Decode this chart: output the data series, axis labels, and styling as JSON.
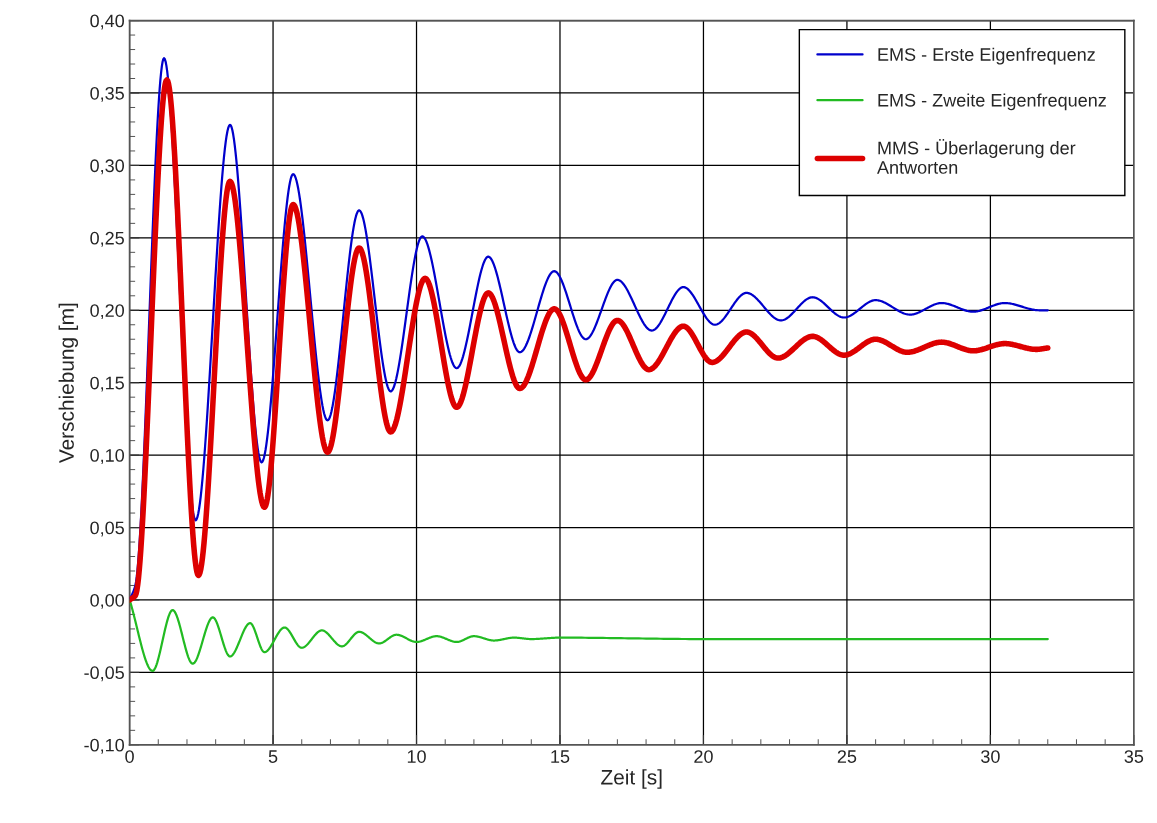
{
  "chart_data": {
    "type": "line",
    "xlabel": "Zeit [s]",
    "ylabel": "Verschiebung [m]",
    "xlim": [
      0,
      35
    ],
    "xticks": [
      0,
      5,
      10,
      15,
      20,
      25,
      30,
      35
    ],
    "ylim": [
      -0.1,
      0.4
    ],
    "yticks": [
      {
        "value": -0.1,
        "label": "-0,10"
      },
      {
        "value": -0.05,
        "label": "-0,05"
      },
      {
        "value": 0,
        "label": "0,00"
      },
      {
        "value": 0.05,
        "label": "0,05"
      },
      {
        "value": 0.1,
        "label": "0,10"
      },
      {
        "value": 0.15,
        "label": "0,15"
      },
      {
        "value": 0.2,
        "label": "0,20"
      },
      {
        "value": 0.25,
        "label": "0,25"
      },
      {
        "value": 0.3,
        "label": "0,30"
      },
      {
        "value": 0.35,
        "label": "0,35"
      },
      {
        "value": 0.4,
        "label": "0,40"
      }
    ],
    "grid": true,
    "legend": "top right",
    "marker": "none",
    "line_style": "solid",
    "series": [
      {
        "name": "EMS - Erste Eigenfrequenz",
        "color": "#0000cc",
        "x": [
          0,
          0.2,
          1.2,
          2.3,
          3.5,
          4.6,
          5.7,
          6.9,
          8.0,
          9.1,
          10.2,
          11.4,
          12.5,
          13.6,
          14.8,
          15.9,
          17.0,
          18.2,
          19.3,
          20.4,
          21.5,
          22.7,
          23.8,
          24.9,
          26.0,
          27.2,
          28.3,
          29.4,
          30.5,
          31.7,
          32.0
        ],
        "values": [
          0,
          0.01,
          0.374,
          0.055,
          0.328,
          0.095,
          0.294,
          0.124,
          0.269,
          0.144,
          0.251,
          0.16,
          0.237,
          0.171,
          0.227,
          0.18,
          0.221,
          0.186,
          0.216,
          0.19,
          0.212,
          0.193,
          0.209,
          0.195,
          0.207,
          0.197,
          0.205,
          0.199,
          0.205,
          0.2,
          0.2
        ]
      },
      {
        "name": "EMS - Zweite Eigenfrequenz",
        "color": "#22bb22",
        "x": [
          0,
          0.8,
          1.5,
          2.2,
          2.9,
          3.5,
          4.2,
          4.7,
          5.4,
          6.0,
          6.7,
          7.4,
          8.0,
          8.7,
          9.3,
          10.0,
          10.7,
          11.4,
          12.0,
          12.7,
          13.4,
          14.0,
          15.0,
          20.0,
          25.0,
          32.0
        ],
        "values": [
          0,
          -0.049,
          -0.007,
          -0.044,
          -0.012,
          -0.039,
          -0.016,
          -0.036,
          -0.019,
          -0.033,
          -0.021,
          -0.032,
          -0.022,
          -0.03,
          -0.024,
          -0.029,
          -0.025,
          -0.029,
          -0.025,
          -0.028,
          -0.026,
          -0.027,
          -0.026,
          -0.027,
          -0.027,
          -0.027
        ]
      },
      {
        "name": "MMS - Überlagerung der\nAntworten",
        "color": "#dd0000",
        "x": [
          0,
          0.2,
          1.3,
          2.4,
          3.5,
          4.7,
          5.7,
          6.9,
          8.0,
          9.1,
          10.3,
          11.4,
          12.5,
          13.6,
          14.8,
          15.9,
          17.0,
          18.1,
          19.3,
          20.3,
          21.5,
          22.6,
          23.8,
          24.9,
          26.0,
          27.1,
          28.3,
          29.4,
          30.5,
          31.6,
          32.0
        ],
        "values": [
          0,
          0.003,
          0.359,
          0.017,
          0.289,
          0.064,
          0.273,
          0.102,
          0.243,
          0.116,
          0.222,
          0.133,
          0.212,
          0.146,
          0.201,
          0.152,
          0.193,
          0.159,
          0.189,
          0.164,
          0.185,
          0.167,
          0.182,
          0.169,
          0.18,
          0.171,
          0.178,
          0.172,
          0.177,
          0.173,
          0.174
        ]
      }
    ]
  }
}
